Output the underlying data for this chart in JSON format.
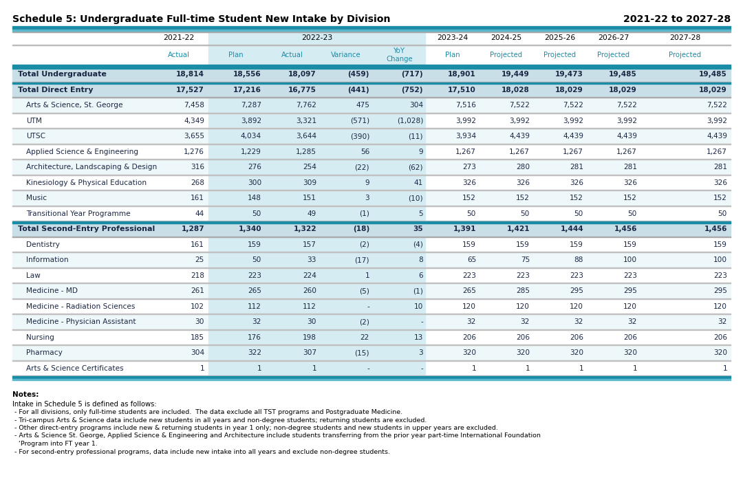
{
  "title_left": "Schedule 5: Undergraduate Full-time Student New Intake by Division",
  "title_right": "2021-22 to 2027-28",
  "subheaders": [
    "Actual",
    "Plan",
    "Actual",
    "Variance",
    "YoY\nChange",
    "Plan",
    "Projected",
    "Projected",
    "Projected",
    "Projected"
  ],
  "year_headers": [
    "2021-22",
    "2022-23",
    "2022-23",
    "2022-23",
    "2022-23",
    "2023-24",
    "2024-25",
    "2025-26",
    "2026-27",
    "2027-28"
  ],
  "rows": [
    {
      "label": "Total Undergraduate",
      "bold": true,
      "values": [
        "18,814",
        "18,556",
        "18,097",
        "(459)",
        "(717)",
        "18,901",
        "19,449",
        "19,473",
        "19,485",
        "19,485"
      ]
    },
    {
      "label": "Total Direct Entry",
      "bold": true,
      "values": [
        "17,527",
        "17,216",
        "16,775",
        "(441)",
        "(752)",
        "17,510",
        "18,028",
        "18,029",
        "18,029",
        "18,029"
      ]
    },
    {
      "label": "Arts & Science, St. George",
      "bold": false,
      "values": [
        "7,458",
        "7,287",
        "7,762",
        "475",
        "304",
        "7,516",
        "7,522",
        "7,522",
        "7,522",
        "7,522"
      ]
    },
    {
      "label": "UTM",
      "bold": false,
      "values": [
        "4,349",
        "3,892",
        "3,321",
        "(571)",
        "(1,028)",
        "3,992",
        "3,992",
        "3,992",
        "3,992",
        "3,992"
      ]
    },
    {
      "label": "UTSC",
      "bold": false,
      "values": [
        "3,655",
        "4,034",
        "3,644",
        "(390)",
        "(11)",
        "3,934",
        "4,439",
        "4,439",
        "4,439",
        "4,439"
      ]
    },
    {
      "label": "Applied Science & Engineering",
      "bold": false,
      "values": [
        "1,276",
        "1,229",
        "1,285",
        "56",
        "9",
        "1,267",
        "1,267",
        "1,267",
        "1,267",
        "1,267"
      ]
    },
    {
      "label": "Architecture, Landscaping & Design",
      "bold": false,
      "values": [
        "316",
        "276",
        "254",
        "(22)",
        "(62)",
        "273",
        "280",
        "281",
        "281",
        "281"
      ]
    },
    {
      "label": "Kinesiology & Physical Education",
      "bold": false,
      "values": [
        "268",
        "300",
        "309",
        "9",
        "41",
        "326",
        "326",
        "326",
        "326",
        "326"
      ]
    },
    {
      "label": "Music",
      "bold": false,
      "values": [
        "161",
        "148",
        "151",
        "3",
        "(10)",
        "152",
        "152",
        "152",
        "152",
        "152"
      ]
    },
    {
      "label": "Transitional Year Programme",
      "bold": false,
      "values": [
        "44",
        "50",
        "49",
        "(1)",
        "5",
        "50",
        "50",
        "50",
        "50",
        "50"
      ]
    },
    {
      "label": "Total Second-Entry Professional",
      "bold": true,
      "values": [
        "1,287",
        "1,340",
        "1,322",
        "(18)",
        "35",
        "1,391",
        "1,421",
        "1,444",
        "1,456",
        "1,456"
      ]
    },
    {
      "label": "Dentistry",
      "bold": false,
      "values": [
        "161",
        "159",
        "157",
        "(2)",
        "(4)",
        "159",
        "159",
        "159",
        "159",
        "159"
      ]
    },
    {
      "label": "Information",
      "bold": false,
      "values": [
        "25",
        "50",
        "33",
        "(17)",
        "8",
        "65",
        "75",
        "88",
        "100",
        "100"
      ]
    },
    {
      "label": "Law",
      "bold": false,
      "values": [
        "218",
        "223",
        "224",
        "1",
        "6",
        "223",
        "223",
        "223",
        "223",
        "223"
      ]
    },
    {
      "label": "Medicine - MD",
      "bold": false,
      "values": [
        "261",
        "265",
        "260",
        "(5)",
        "(1)",
        "265",
        "285",
        "295",
        "295",
        "295"
      ]
    },
    {
      "label": "Medicine - Radiation Sciences",
      "bold": false,
      "values": [
        "102",
        "112",
        "112",
        "-",
        "10",
        "120",
        "120",
        "120",
        "120",
        "120"
      ]
    },
    {
      "label": "Medicine - Physician Assistant",
      "bold": false,
      "values": [
        "30",
        "32",
        "30",
        "(2)",
        "-",
        "32",
        "32",
        "32",
        "32",
        "32"
      ]
    },
    {
      "label": "Nursing",
      "bold": false,
      "values": [
        "185",
        "176",
        "198",
        "22",
        "13",
        "206",
        "206",
        "206",
        "206",
        "206"
      ]
    },
    {
      "label": "Pharmacy",
      "bold": false,
      "values": [
        "304",
        "322",
        "307",
        "(15)",
        "3",
        "320",
        "320",
        "320",
        "320",
        "320"
      ]
    },
    {
      "label": "Arts & Science Certificates",
      "bold": false,
      "values": [
        "1",
        "1",
        "1",
        "-",
        "-",
        "1",
        "1",
        "1",
        "1",
        "1"
      ]
    }
  ],
  "notes": [
    "Notes:",
    "Intake in Schedule 5 is defined as follows:",
    " - For all divisions, only full-time students are included.  The data exclude all TST programs and Postgraduate Medicine.",
    " - Tri-campus Arts & Science data include new students in all years and non-degree students; returning students are excluded.",
    " - Other direct-entry programs include new & returning students in year 1 only; non-degree students and new students in upper years are excluded.",
    " - Arts & Science St. George, Applied Science & Engineering and Architecture include students transferring from the prior year part-time International Foundation",
    "   ‘Program into FT year 1.",
    " - For second-entry professional programs, data include new intake into all years and exclude non-degree students."
  ],
  "teal": "#1B8CA6",
  "teal2": "#5BB8CC",
  "light_blue_row": "#C8DFE8",
  "col_highlight_bg": "#D6ECF3",
  "normal_row_bg1": "#EEF7FA",
  "normal_row_bg2": "#FFFFFF",
  "teal_text": "#1B8CA6",
  "dark_text": "#1A2744",
  "normal_text": "#1A2744"
}
